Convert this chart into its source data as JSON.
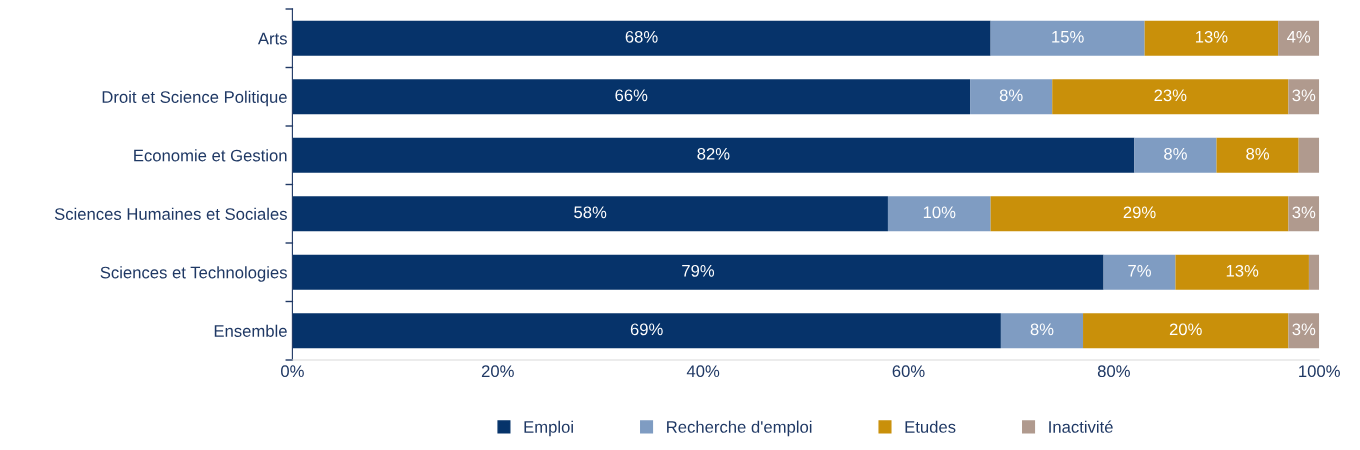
{
  "chart_data": {
    "type": "bar",
    "orientation": "horizontal",
    "stacked": true,
    "categories": [
      "Arts",
      "Droit et Science Politique",
      "Economie et Gestion",
      "Sciences Humaines et Sociales",
      "Sciences et Technologies",
      "Ensemble"
    ],
    "series": [
      {
        "name": "Emploi",
        "color": "#06336a",
        "values": [
          68,
          66,
          82,
          58,
          79,
          69
        ],
        "value_labels": [
          "68%",
          "66%",
          "82%",
          "58%",
          "79%",
          "69%"
        ]
      },
      {
        "name": "Recherche d'emploi",
        "color": "#7f9cc2",
        "values": [
          15,
          8,
          8,
          10,
          7,
          8
        ],
        "value_labels": [
          "15%",
          "8%",
          "8%",
          "10%",
          "7%",
          "8%"
        ]
      },
      {
        "name": "Etudes",
        "color": "#c9900a",
        "values": [
          13,
          23,
          8,
          29,
          13,
          20
        ],
        "value_labels": [
          "13%",
          "23%",
          "8%",
          "29%",
          "13%",
          "20%"
        ]
      },
      {
        "name": "Inactivité",
        "color": "#b09a8e",
        "values": [
          4,
          3,
          2,
          3,
          1,
          3
        ],
        "value_labels": [
          "4%",
          "3%",
          null,
          "3%",
          null,
          "3%"
        ]
      }
    ],
    "xlim": [
      0,
      100
    ],
    "xticks": [
      {
        "value": 0,
        "label": "0%"
      },
      {
        "value": 20,
        "label": "20%"
      },
      {
        "value": 40,
        "label": "40%"
      },
      {
        "value": 60,
        "label": "60%"
      },
      {
        "value": 80,
        "label": "80%"
      },
      {
        "value": 100,
        "label": "100%"
      }
    ],
    "grid": false,
    "legend": "bottom"
  }
}
